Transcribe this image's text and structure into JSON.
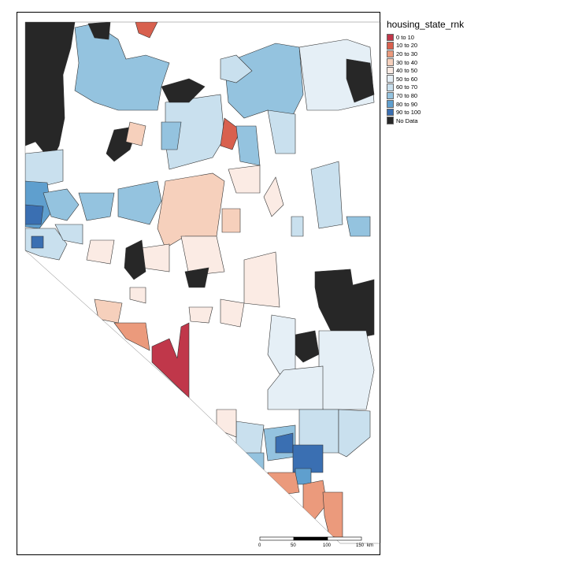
{
  "legend": {
    "title": "housing_state_rnk",
    "items": [
      {
        "label": "0 to 10",
        "color": "#c0374a"
      },
      {
        "label": "10 to 20",
        "color": "#d8604e"
      },
      {
        "label": "20 to 30",
        "color": "#eb9a7c"
      },
      {
        "label": "30 to 40",
        "color": "#f6d0bc"
      },
      {
        "label": "40 to 50",
        "color": "#fbebe4"
      },
      {
        "label": "50 to 60",
        "color": "#e5eff6"
      },
      {
        "label": "60 to 70",
        "color": "#c9e0ee"
      },
      {
        "label": "70 to 80",
        "color": "#94c3df"
      },
      {
        "label": "80 to 90",
        "color": "#5f9fce"
      },
      {
        "label": "90 to 100",
        "color": "#3a6fb2"
      },
      {
        "label": "No Data",
        "color": "#272727"
      }
    ]
  },
  "scalebar": {
    "ticks": [
      "0",
      "50",
      "100",
      "150"
    ],
    "unit": "km"
  }
}
